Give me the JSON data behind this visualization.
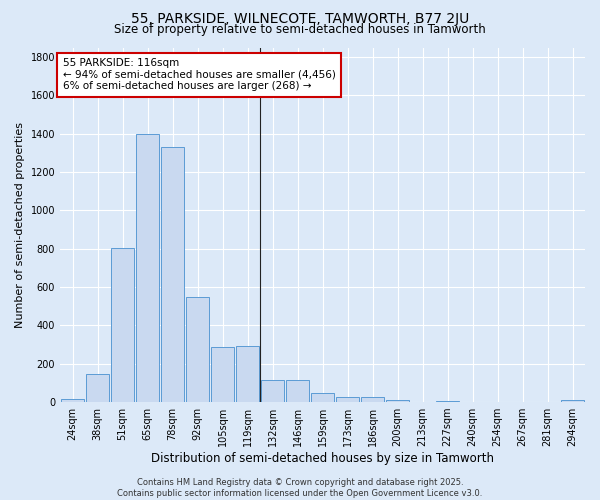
{
  "title": "55, PARKSIDE, WILNECOTE, TAMWORTH, B77 2JU",
  "subtitle": "Size of property relative to semi-detached houses in Tamworth",
  "xlabel": "Distribution of semi-detached houses by size in Tamworth",
  "ylabel": "Number of semi-detached properties",
  "categories": [
    "24sqm",
    "38sqm",
    "51sqm",
    "65sqm",
    "78sqm",
    "92sqm",
    "105sqm",
    "119sqm",
    "132sqm",
    "146sqm",
    "159sqm",
    "173sqm",
    "186sqm",
    "200sqm",
    "213sqm",
    "227sqm",
    "240sqm",
    "254sqm",
    "267sqm",
    "281sqm",
    "294sqm"
  ],
  "values": [
    15,
    145,
    805,
    1400,
    1330,
    550,
    290,
    295,
    115,
    115,
    45,
    25,
    25,
    10,
    0,
    5,
    0,
    0,
    0,
    0,
    10
  ],
  "bar_color": "#c9d9f0",
  "bar_edge_color": "#5b9bd5",
  "property_label": "55 PARKSIDE: 116sqm",
  "pct_smaller": 94,
  "n_smaller": 4456,
  "pct_larger": 6,
  "n_larger": 268,
  "vline_x": 7.5,
  "annotation_box_color": "#ffffff",
  "annotation_box_edge_color": "#cc0000",
  "ylim": [
    0,
    1850
  ],
  "yticks": [
    0,
    200,
    400,
    600,
    800,
    1000,
    1200,
    1400,
    1600,
    1800
  ],
  "background_color": "#dce9f8",
  "grid_color": "#ffffff",
  "footnote": "Contains HM Land Registry data © Crown copyright and database right 2025.\nContains public sector information licensed under the Open Government Licence v3.0.",
  "title_fontsize": 10,
  "subtitle_fontsize": 8.5,
  "ylabel_fontsize": 8,
  "xlabel_fontsize": 8.5,
  "tick_fontsize": 7,
  "annotation_fontsize": 7.5,
  "footnote_fontsize": 6
}
